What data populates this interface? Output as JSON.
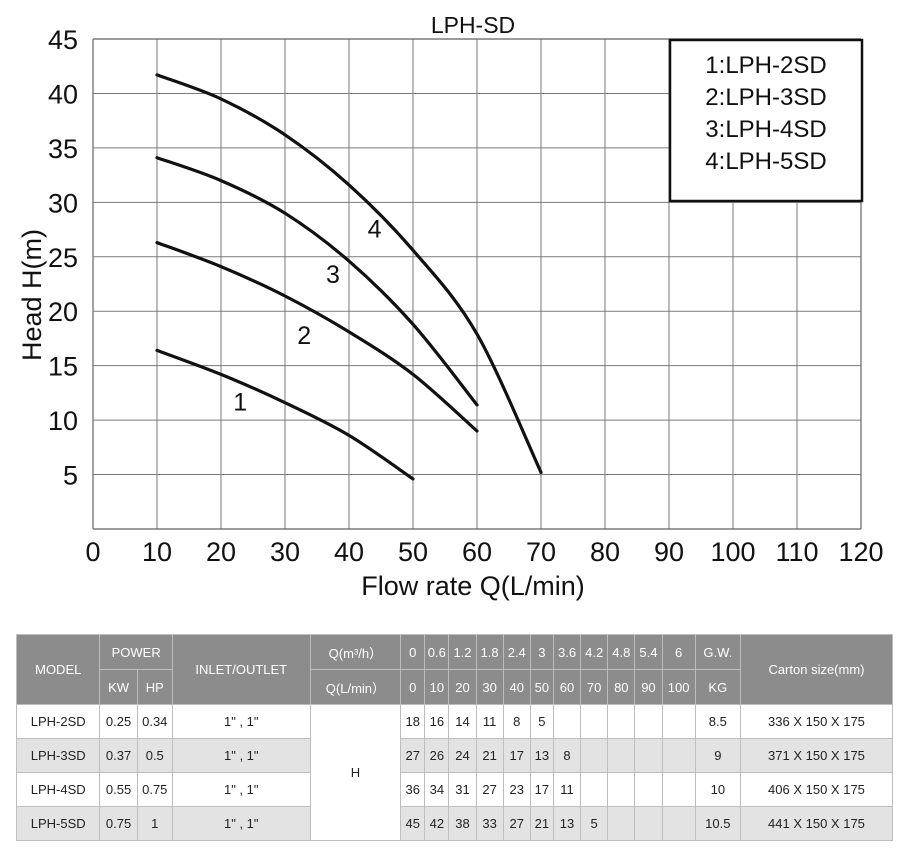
{
  "chart_data": {
    "type": "line",
    "title": "LPH-SD",
    "xlabel": "Flow rate Q(L/min)",
    "ylabel": "Head H(m)",
    "xlim": [
      0,
      120
    ],
    "ylim": [
      0,
      45
    ],
    "x_ticks": [
      "0",
      "10",
      "20",
      "30",
      "40",
      "50",
      "60",
      "70",
      "80",
      "90",
      "100",
      "110",
      "120"
    ],
    "y_ticks": [
      "5",
      "10",
      "15",
      "20",
      "25",
      "30",
      "35",
      "40",
      "45"
    ],
    "grid": true,
    "legend_position": "top-right",
    "legend": [
      "1:LPH-2SD",
      "2:LPH-3SD",
      "3:LPH-4SD",
      "4:LPH-5SD"
    ],
    "series": [
      {
        "name": "1",
        "x": [
          10,
          20,
          30,
          40,
          50
        ],
        "y": [
          16.4,
          14.2,
          11.6,
          8.6,
          4.6
        ]
      },
      {
        "name": "2",
        "x": [
          10,
          20,
          30,
          40,
          50,
          60
        ],
        "y": [
          26.3,
          24.1,
          21.4,
          18.1,
          14.2,
          9.0
        ]
      },
      {
        "name": "3",
        "x": [
          10,
          20,
          30,
          40,
          50,
          60
        ],
        "y": [
          34.1,
          32.0,
          29.0,
          24.6,
          18.8,
          11.4
        ]
      },
      {
        "name": "4",
        "x": [
          10,
          20,
          30,
          40,
          50,
          60,
          70
        ],
        "y": [
          41.7,
          39.5,
          36.2,
          31.6,
          25.6,
          17.9,
          5.2
        ]
      }
    ],
    "curve_labels": [
      {
        "text": "1",
        "x": 23,
        "y": 11.7
      },
      {
        "text": "2",
        "x": 33,
        "y": 17.8
      },
      {
        "text": "3",
        "x": 37.5,
        "y": 23.4
      },
      {
        "text": "4",
        "x": 44,
        "y": 27.6
      }
    ]
  },
  "table": {
    "header1": {
      "model": "MODEL",
      "power": "POWER",
      "inlet": "INLET/OUTLET",
      "q_m3h": "Q(m³/h）",
      "q_values": [
        "0",
        "0.6",
        "1.2",
        "1.8",
        "2.4",
        "3",
        "3.6",
        "4.2",
        "4.8",
        "5.4",
        "6"
      ],
      "gw": "G.W.",
      "carton": "Carton size(mm)"
    },
    "header2": {
      "kw": "KW",
      "hp": "HP",
      "q_lmin": "Q(L/min）",
      "q_values": [
        "0",
        "10",
        "20",
        "30",
        "40",
        "50",
        "60",
        "70",
        "80",
        "90",
        "100"
      ],
      "kg": "KG"
    },
    "h_label": "H",
    "rows": [
      {
        "model": "LPH-2SD",
        "kw": "0.25",
        "hp": "0.34",
        "inlet": "1\" , 1\"",
        "h": [
          "18",
          "16",
          "14",
          "11",
          "8",
          "5",
          "",
          "",
          "",
          "",
          ""
        ],
        "gw": "8.5",
        "carton": "336 X 150 X 175"
      },
      {
        "model": "LPH-3SD",
        "kw": "0.37",
        "hp": "0.5",
        "inlet": "1\" , 1\"",
        "h": [
          "27",
          "26",
          "24",
          "21",
          "17",
          "13",
          "8",
          "",
          "",
          "",
          ""
        ],
        "gw": "9",
        "carton": "371 X 150 X 175"
      },
      {
        "model": "LPH-4SD",
        "kw": "0.55",
        "hp": "0.75",
        "inlet": "1\" , 1\"",
        "h": [
          "36",
          "34",
          "31",
          "27",
          "23",
          "17",
          "11",
          "",
          "",
          "",
          ""
        ],
        "gw": "10",
        "carton": "406 X 150 X 175"
      },
      {
        "model": "LPH-5SD",
        "kw": "0.75",
        "hp": "1",
        "inlet": "1\" , 1\"",
        "h": [
          "45",
          "42",
          "38",
          "33",
          "27",
          "21",
          "13",
          "5",
          "",
          "",
          ""
        ],
        "gw": "10.5",
        "carton": "441 X 150 X 175"
      }
    ]
  }
}
